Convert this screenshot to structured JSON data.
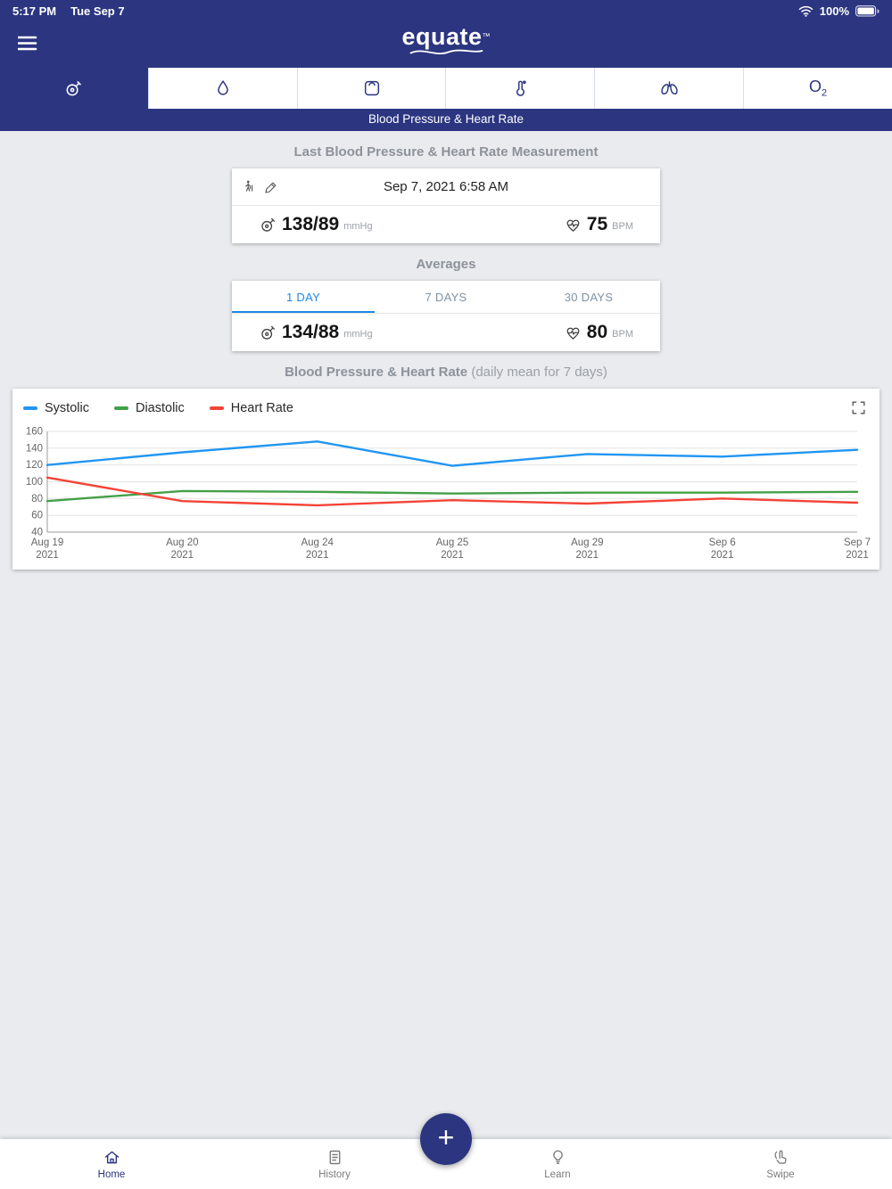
{
  "status_bar": {
    "time": "5:17 PM",
    "date": "Tue Sep 7",
    "battery_percent": "100%"
  },
  "header": {
    "logo_text": "equate",
    "trademark": "™"
  },
  "tab_bar": {
    "o2_label": "O",
    "o2_sub": "2",
    "tabs": [
      {
        "id": "blood-pressure",
        "icon": "blood-pressure-monitor-icon",
        "selected": true
      },
      {
        "id": "glucose",
        "icon": "water-drop-icon",
        "selected": false
      },
      {
        "id": "weight",
        "icon": "scale-icon",
        "selected": false
      },
      {
        "id": "temperature",
        "icon": "thermometer-icon",
        "selected": false
      },
      {
        "id": "respiratory",
        "icon": "lungs-icon",
        "selected": false
      },
      {
        "id": "oxygen",
        "icon": "o2-icon",
        "selected": false
      }
    ]
  },
  "title_bar": {
    "title": "Blood Pressure & Heart Rate"
  },
  "last_measurement": {
    "heading": "Last Blood Pressure & Heart Rate Measurement",
    "datetime": "Sep 7, 2021 6:58 AM",
    "blood_pressure": {
      "value": "138/89",
      "unit": "mmHg"
    },
    "heart_rate": {
      "value": "75",
      "unit": "BPM"
    }
  },
  "averages": {
    "heading": "Averages",
    "tabs": [
      "1 DAY",
      "7 DAYS",
      "30 DAYS"
    ],
    "selected_tab": "1 DAY",
    "blood_pressure": {
      "value": "134/88",
      "unit": "mmHg"
    },
    "heart_rate": {
      "value": "80",
      "unit": "BPM"
    }
  },
  "chart_data": {
    "type": "line",
    "title": "Blood Pressure & Heart Rate",
    "subtitle": "(daily mean for 7 days)",
    "categories": [
      "Aug 19",
      "Aug 20",
      "Aug 24",
      "Aug 25",
      "Aug 29",
      "Sep 6",
      "Sep 7"
    ],
    "category_year": "2021",
    "series": [
      {
        "name": "Systolic",
        "color": "#2196f3",
        "values": [
          120,
          135,
          148,
          119,
          133,
          130,
          138
        ]
      },
      {
        "name": "Diastolic",
        "color": "#43a047",
        "values": [
          77,
          89,
          88,
          86,
          87,
          87,
          88
        ]
      },
      {
        "name": "Heart Rate",
        "color": "#f44336",
        "values": [
          105,
          77,
          72,
          78,
          74,
          80,
          75
        ]
      }
    ],
    "ylim": [
      40,
      160
    ],
    "yticks": [
      40,
      60,
      80,
      100,
      120,
      140,
      160
    ],
    "grid": true,
    "legend_position": "top-left"
  },
  "fab": {
    "label": "+"
  },
  "bottom_nav": {
    "items": [
      {
        "label": "Home",
        "icon": "home-icon",
        "active": true
      },
      {
        "label": "History",
        "icon": "history-icon",
        "active": false
      },
      {
        "label": "Learn",
        "icon": "learn-icon",
        "active": false
      },
      {
        "label": "Swipe",
        "icon": "swipe-icon",
        "active": false
      }
    ]
  }
}
